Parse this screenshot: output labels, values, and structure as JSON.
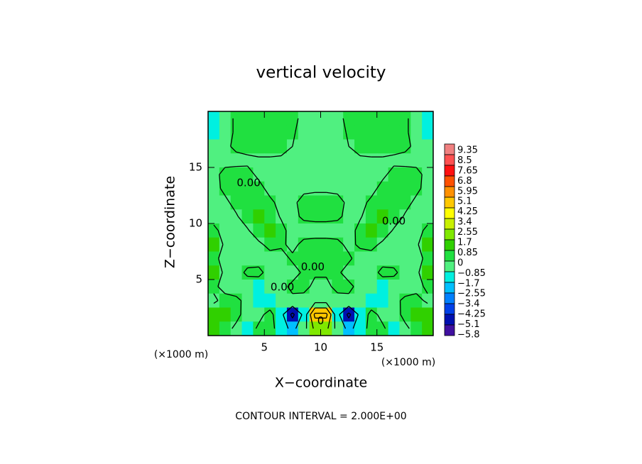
{
  "chart_data": {
    "type": "contour",
    "title": "vertical velocity",
    "xlabel": "X−coordinate",
    "ylabel": "Z−coordinate",
    "xunit": "(×1000 m)",
    "yunit": "(×1000 m)",
    "footer": "CONTOUR INTERVAL = 2.000E+00",
    "xlim": [
      0,
      20
    ],
    "ylim": [
      0,
      20
    ],
    "xticks": [
      5,
      10,
      15
    ],
    "yticks": [
      5,
      10,
      15
    ],
    "contour_levels": [
      -4,
      -2,
      0,
      2,
      4
    ],
    "contour_labels": [
      {
        "text": "0.00",
        "x": 3.6,
        "y": 13.6
      },
      {
        "text": "0.00",
        "x": 16.5,
        "y": 10.2
      },
      {
        "text": "0.00",
        "x": 9.3,
        "y": 6.1
      },
      {
        "text": "0.00",
        "x": 6.6,
        "y": 4.3
      },
      {
        "text": "0",
        "x": 10,
        "y": 1.3
      }
    ],
    "colorbar": {
      "ticks": [
        9.35,
        8.5,
        7.65,
        6.8,
        5.95,
        5.1,
        4.25,
        3.4,
        2.55,
        1.7,
        0.85,
        0,
        {
          "value": -0.85,
          "label": "−0.85"
        },
        {
          "value": -1.7,
          "label": "−1.7"
        },
        {
          "value": -2.55,
          "label": "−2.55"
        },
        {
          "value": -3.4,
          "label": "−3.4"
        },
        {
          "value": -4.25,
          "label": "−4.25"
        },
        {
          "value": -5.1,
          "label": "−5.1"
        },
        {
          "value": -5.8,
          "label": "−5.8"
        }
      ],
      "colors": [
        "#f08080",
        "#ff5050",
        "#ff1010",
        "#ff5000",
        "#ff9000",
        "#ffc800",
        "#ffff00",
        "#c8f000",
        "#80e800",
        "#30d000",
        "#20e040",
        "#50f080",
        "#00f0e0",
        "#00c0ff",
        "#0080ff",
        "#0040e8",
        "#0010b0",
        "#4010a0"
      ]
    },
    "grid_values": [
      [
        -1.0,
        -0.5,
        0.2,
        0.3,
        0.3,
        0.3,
        0.3,
        0.2,
        -0.2,
        -0.3,
        -0.3,
        -0.2,
        0.2,
        0.3,
        0.3,
        0.3,
        0.3,
        0.2,
        -0.5,
        -1.0
      ],
      [
        -1.0,
        -0.5,
        0.2,
        0.3,
        0.3,
        0.3,
        0.3,
        0.1,
        -0.3,
        -0.4,
        -0.4,
        -0.3,
        0.1,
        0.3,
        0.3,
        0.3,
        0.3,
        0.2,
        -0.5,
        -1.0
      ],
      [
        -0.6,
        -0.2,
        0.2,
        0.3,
        0.3,
        0.3,
        0.2,
        0.0,
        -0.4,
        -0.5,
        -0.5,
        -0.4,
        0.0,
        0.2,
        0.3,
        0.3,
        0.3,
        0.2,
        -0.2,
        -0.6
      ],
      [
        -0.2,
        -0.3,
        -0.3,
        -0.2,
        -0.1,
        -0.1,
        -0.1,
        -0.3,
        -0.5,
        -0.6,
        -0.6,
        -0.5,
        -0.3,
        -0.1,
        -0.1,
        -0.1,
        -0.2,
        -0.3,
        -0.3,
        -0.2
      ],
      [
        -0.3,
        0.3,
        0.4,
        0.3,
        -0.2,
        -0.3,
        -0.4,
        -0.5,
        -0.6,
        -0.6,
        -0.6,
        -0.6,
        -0.5,
        -0.4,
        -0.3,
        -0.2,
        0.3,
        0.4,
        0.3,
        -0.3
      ],
      [
        -0.3,
        0.2,
        0.5,
        0.6,
        0.3,
        -0.3,
        -0.4,
        -0.3,
        -0.2,
        -0.2,
        -0.2,
        -0.2,
        -0.3,
        -0.4,
        -0.3,
        0.3,
        0.6,
        0.5,
        0.2,
        -0.3
      ],
      [
        -0.3,
        -0.2,
        0.3,
        0.7,
        0.6,
        0.2,
        -0.3,
        -0.2,
        0.3,
        0.5,
        0.5,
        0.3,
        -0.2,
        -0.3,
        0.2,
        0.6,
        0.7,
        0.3,
        -0.2,
        -0.3
      ],
      [
        -0.3,
        -0.3,
        -0.1,
        0.5,
        0.9,
        0.5,
        -0.1,
        -0.3,
        0.2,
        0.3,
        0.3,
        0.2,
        -0.3,
        -0.1,
        0.5,
        0.9,
        0.5,
        -0.1,
        -0.3,
        -0.3
      ],
      [
        0.2,
        -0.3,
        -0.4,
        -0.1,
        0.6,
        0.9,
        0.3,
        -0.4,
        -0.5,
        -0.5,
        -0.5,
        -0.5,
        -0.4,
        0.3,
        0.9,
        0.6,
        -0.1,
        -0.4,
        -0.3,
        0.2
      ],
      [
        0.9,
        -0.2,
        -0.5,
        -0.5,
        -0.2,
        0.3,
        0.2,
        -0.3,
        0.3,
        0.4,
        0.4,
        0.3,
        -0.3,
        0.2,
        0.3,
        -0.2,
        -0.5,
        -0.5,
        -0.2,
        0.9
      ],
      [
        0.3,
        -0.4,
        -0.7,
        -0.6,
        -0.6,
        -0.4,
        -0.5,
        0.2,
        0.4,
        0.3,
        0.3,
        0.4,
        0.2,
        -0.5,
        -0.4,
        -0.6,
        -0.6,
        -0.7,
        -0.4,
        0.3
      ],
      [
        1.0,
        -0.3,
        -0.6,
        0.3,
        0.4,
        -0.6,
        -0.8,
        -0.5,
        0.2,
        0.2,
        0.2,
        0.2,
        -0.5,
        -0.8,
        -0.6,
        0.4,
        0.3,
        -0.6,
        -0.3,
        1.0
      ],
      [
        0.3,
        -0.5,
        -0.7,
        -0.8,
        -0.9,
        -0.7,
        -0.4,
        0.3,
        0.5,
        -0.4,
        -0.4,
        0.5,
        0.3,
        -0.4,
        -0.7,
        -0.9,
        -0.8,
        -0.7,
        -0.5,
        0.3
      ],
      [
        -0.3,
        0.5,
        0.3,
        -0.4,
        -0.9,
        -1.2,
        -0.8,
        -0.3,
        -0.6,
        -0.8,
        -0.8,
        -0.6,
        -0.3,
        -0.8,
        -1.2,
        -0.9,
        -0.4,
        0.3,
        0.5,
        -0.3
      ],
      [
        1.2,
        0.9,
        0.4,
        -0.6,
        -0.5,
        0.6,
        -1.5,
        -4.5,
        -1.5,
        4.5,
        4.5,
        -1.5,
        -4.5,
        -1.5,
        0.6,
        -0.5,
        -0.6,
        0.4,
        0.9,
        1.2
      ],
      [
        1.0,
        0.5,
        -0.3,
        -0.9,
        0.3,
        0.8,
        -1.2,
        -2.5,
        -0.8,
        2.5,
        2.5,
        -0.8,
        -2.5,
        -1.2,
        0.8,
        0.3,
        -0.9,
        -0.3,
        0.5,
        1.0
      ]
    ]
  }
}
